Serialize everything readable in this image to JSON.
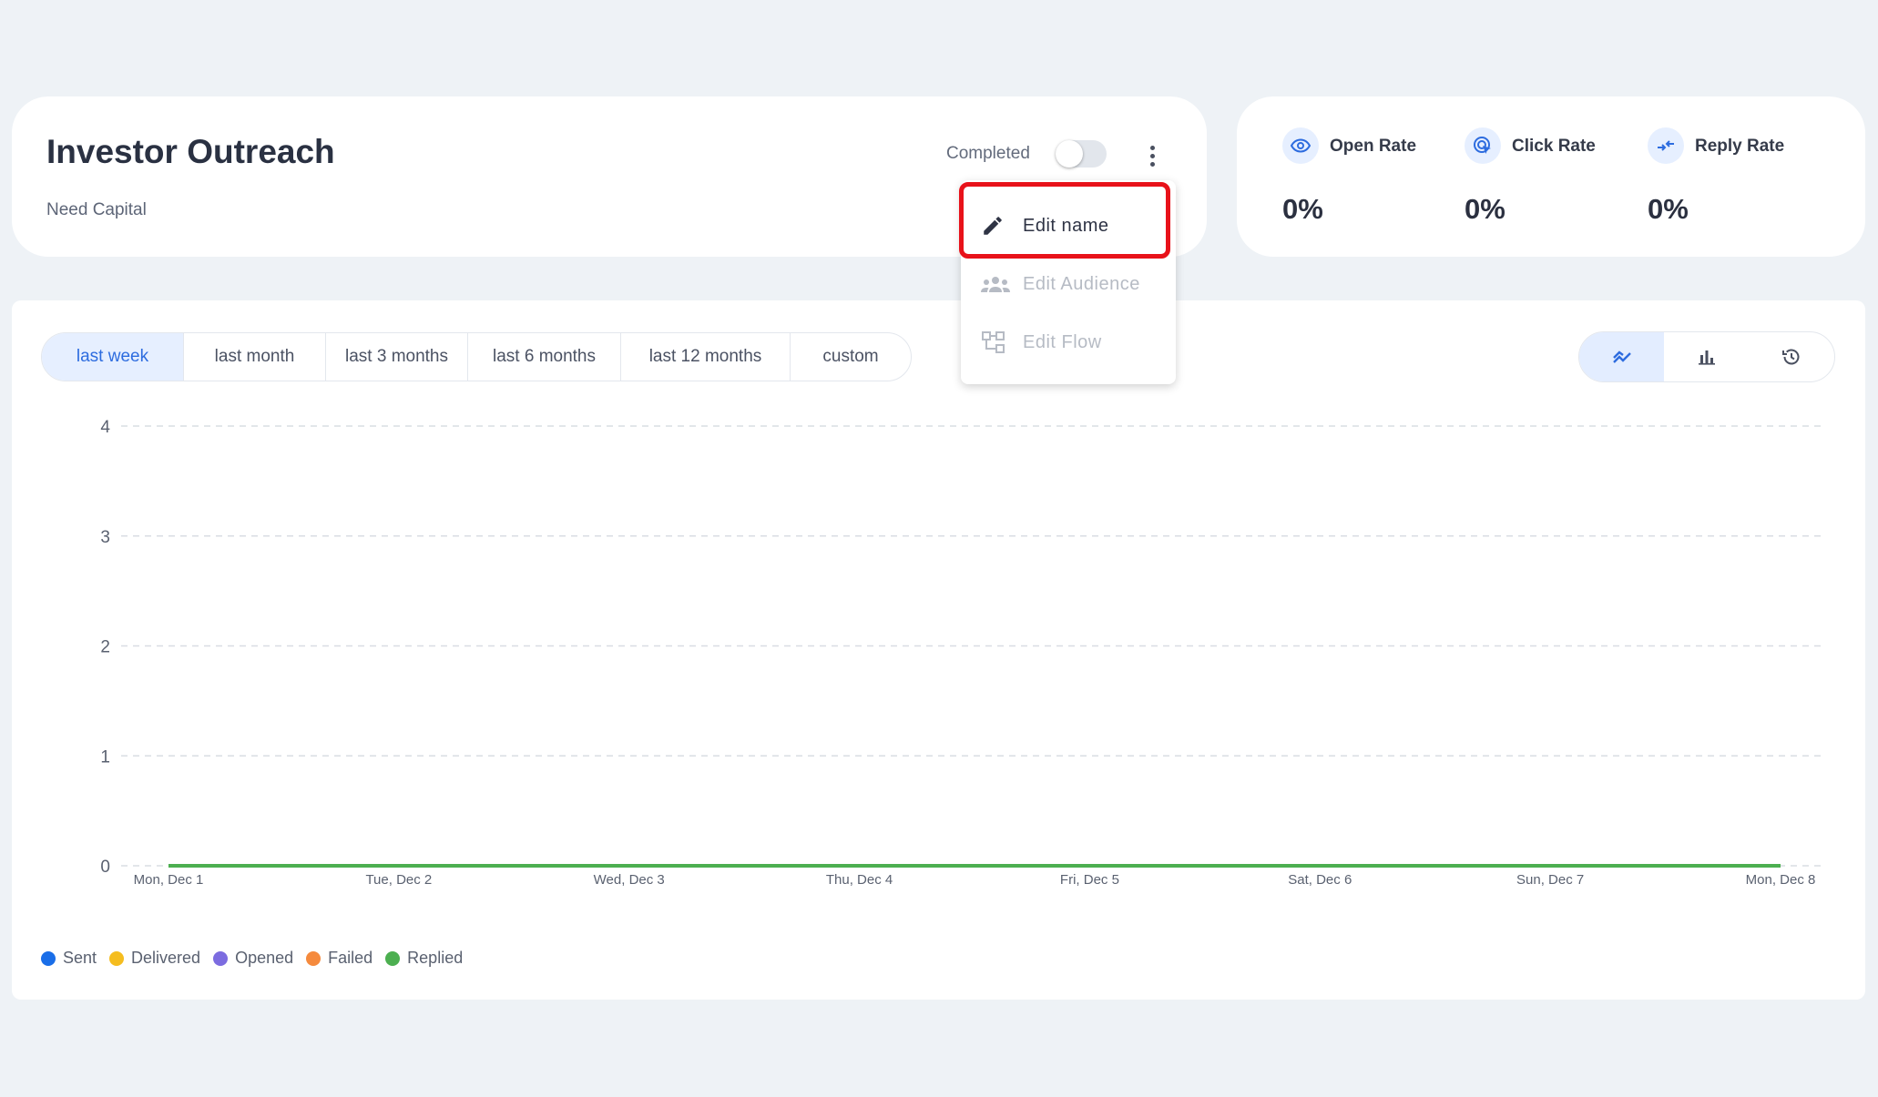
{
  "campaign": {
    "title": "Investor Outreach",
    "subtitle": "Need Capital",
    "status_label": "Completed",
    "toggle_on": false
  },
  "stats": [
    {
      "label": "Open Rate",
      "value": "0%",
      "icon": "eye-icon"
    },
    {
      "label": "Click Rate",
      "value": "0%",
      "icon": "click-icon"
    },
    {
      "label": "Reply Rate",
      "value": "0%",
      "icon": "reply-icon"
    }
  ],
  "menu": {
    "items": [
      {
        "label": "Edit name",
        "icon": "pencil-icon",
        "enabled": true
      },
      {
        "label": "Edit Audience",
        "icon": "group-icon",
        "enabled": false
      },
      {
        "label": "Edit Flow",
        "icon": "flow-icon",
        "enabled": false
      }
    ]
  },
  "range_tabs": [
    "last week",
    "last month",
    "last 3 months",
    "last 6 months",
    "last 12 months",
    "custom"
  ],
  "selected_range": "last week",
  "view_modes": [
    "line-chart-icon",
    "bar-chart-icon",
    "history-icon"
  ],
  "selected_view": "line-chart-icon",
  "legend": [
    {
      "label": "Sent",
      "color": "#1a6ee8"
    },
    {
      "label": "Delivered",
      "color": "#f5bd1f"
    },
    {
      "label": "Opened",
      "color": "#7c6ce0"
    },
    {
      "label": "Failed",
      "color": "#f58a3d"
    },
    {
      "label": "Replied",
      "color": "#4caf50"
    }
  ],
  "chart_data": {
    "type": "line",
    "x": [
      "Mon, Dec 1",
      "Tue, Dec 2",
      "Wed, Dec 3",
      "Thu, Dec 4",
      "Fri, Dec 5",
      "Sat, Dec 6",
      "Sun, Dec 7",
      "Mon, Dec 8"
    ],
    "yticks": [
      "0",
      "1",
      "2",
      "3",
      "4"
    ],
    "ylim": [
      0,
      4
    ],
    "grid": true,
    "series": [
      {
        "name": "Sent",
        "color": "#1a6ee8",
        "values": [
          0,
          0,
          0,
          0,
          0,
          0,
          0,
          0
        ]
      },
      {
        "name": "Delivered",
        "color": "#f5bd1f",
        "values": [
          0,
          0,
          0,
          0,
          0,
          0,
          0,
          0
        ]
      },
      {
        "name": "Opened",
        "color": "#7c6ce0",
        "values": [
          0,
          0,
          0,
          0,
          0,
          0,
          0,
          0
        ]
      },
      {
        "name": "Failed",
        "color": "#f58a3d",
        "values": [
          0,
          0,
          0,
          0,
          0,
          0,
          0,
          0
        ]
      },
      {
        "name": "Replied",
        "color": "#4caf50",
        "values": [
          0,
          0,
          0,
          0,
          0,
          0,
          0,
          0
        ]
      }
    ]
  }
}
